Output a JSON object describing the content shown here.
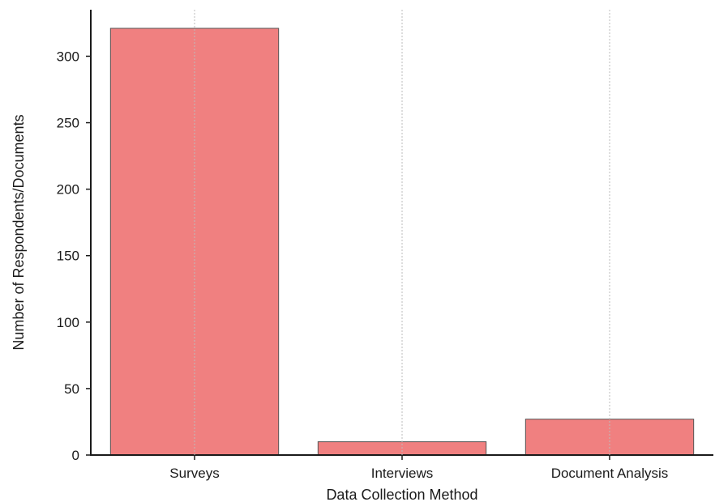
{
  "chart_data": {
    "type": "bar",
    "categories": [
      "Surveys",
      "Interviews",
      "Document Analysis"
    ],
    "values": [
      321,
      10,
      27
    ],
    "title": "",
    "xlabel": "Data Collection Method",
    "ylabel": "Number of Respondents/Documents",
    "ylim": [
      0,
      335
    ],
    "yticks": [
      0,
      50,
      100,
      150,
      200,
      250,
      300
    ],
    "grid": "vertical dotted lines at category centers",
    "colors": {
      "bar_fill": "#f08080",
      "bar_edge": "#555555",
      "axis": "#1a1a1a",
      "grid": "#bbbbbb"
    }
  }
}
